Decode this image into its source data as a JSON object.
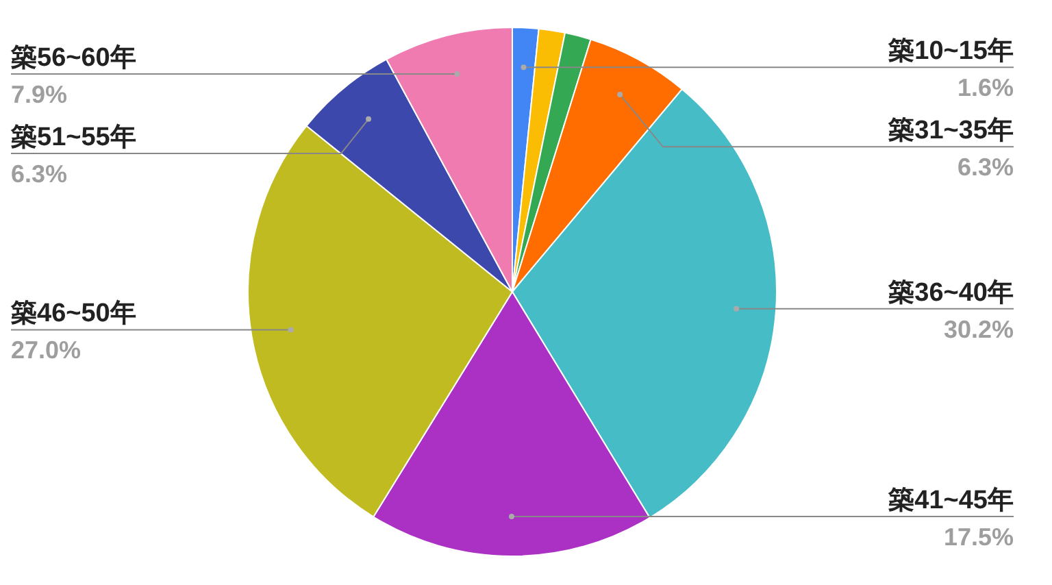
{
  "chart_data": {
    "type": "pie",
    "categories": [
      "築10~15年",
      null,
      null,
      "築31~35年",
      "築36~40年",
      "築41~45年",
      "築46~50年",
      "築51~55年",
      "築56~60年"
    ],
    "values": [
      1.6,
      1.6,
      1.6,
      6.3,
      30.2,
      17.5,
      27.0,
      6.3,
      7.9
    ],
    "colors": [
      "#4285f4",
      "#fbbc04",
      "#34a853",
      "#ff6d01",
      "#46bdc6",
      "#ab30c4",
      "#c1bb22",
      "#3d48ad",
      "#f07bb0"
    ],
    "value_labels": [
      "1.6%",
      null,
      null,
      "6.3%",
      "30.2%",
      "17.5%",
      "27.0%",
      "6.3%",
      "7.9%"
    ]
  }
}
